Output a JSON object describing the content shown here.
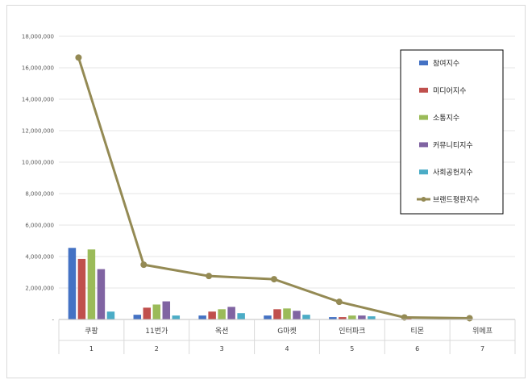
{
  "chart_data": {
    "type": "bar",
    "categories": [
      "쿠팡",
      "11번가",
      "옥션",
      "G마켓",
      "인터파크",
      "티몬",
      "위메프"
    ],
    "ranks": [
      "1",
      "2",
      "3",
      "4",
      "5",
      "6",
      "7"
    ],
    "ylim": [
      0,
      18000000
    ],
    "yticks": [
      "-",
      "2,000,000",
      "4,000,000",
      "6,000,000",
      "8,000,000",
      "10,000,000",
      "12,000,000",
      "14,000,000",
      "16,000,000",
      "18,000,000"
    ],
    "legend_position": "right",
    "grid": true,
    "series": [
      {
        "name": "참여지수",
        "type": "bar",
        "color": "#4472c4",
        "values": [
          4550000,
          300000,
          250000,
          250000,
          150000,
          0,
          0
        ]
      },
      {
        "name": "미디어지수",
        "type": "bar",
        "color": "#c0504d",
        "values": [
          3850000,
          750000,
          500000,
          650000,
          150000,
          60000,
          0
        ]
      },
      {
        "name": "소통지수",
        "type": "bar",
        "color": "#9bbb59",
        "values": [
          4450000,
          950000,
          650000,
          700000,
          250000,
          0,
          0
        ]
      },
      {
        "name": "커뮤니티지수",
        "type": "bar",
        "color": "#8064a2",
        "values": [
          3200000,
          1150000,
          800000,
          550000,
          250000,
          0,
          0
        ]
      },
      {
        "name": "사회공헌지수",
        "type": "bar",
        "color": "#4bacc6",
        "values": [
          500000,
          250000,
          400000,
          300000,
          200000,
          0,
          0
        ]
      },
      {
        "name": "브랜드평판지수",
        "type": "line",
        "color": "#948a54",
        "values": [
          16650000,
          3480000,
          2760000,
          2560000,
          1120000,
          130000,
          80000
        ]
      }
    ]
  }
}
